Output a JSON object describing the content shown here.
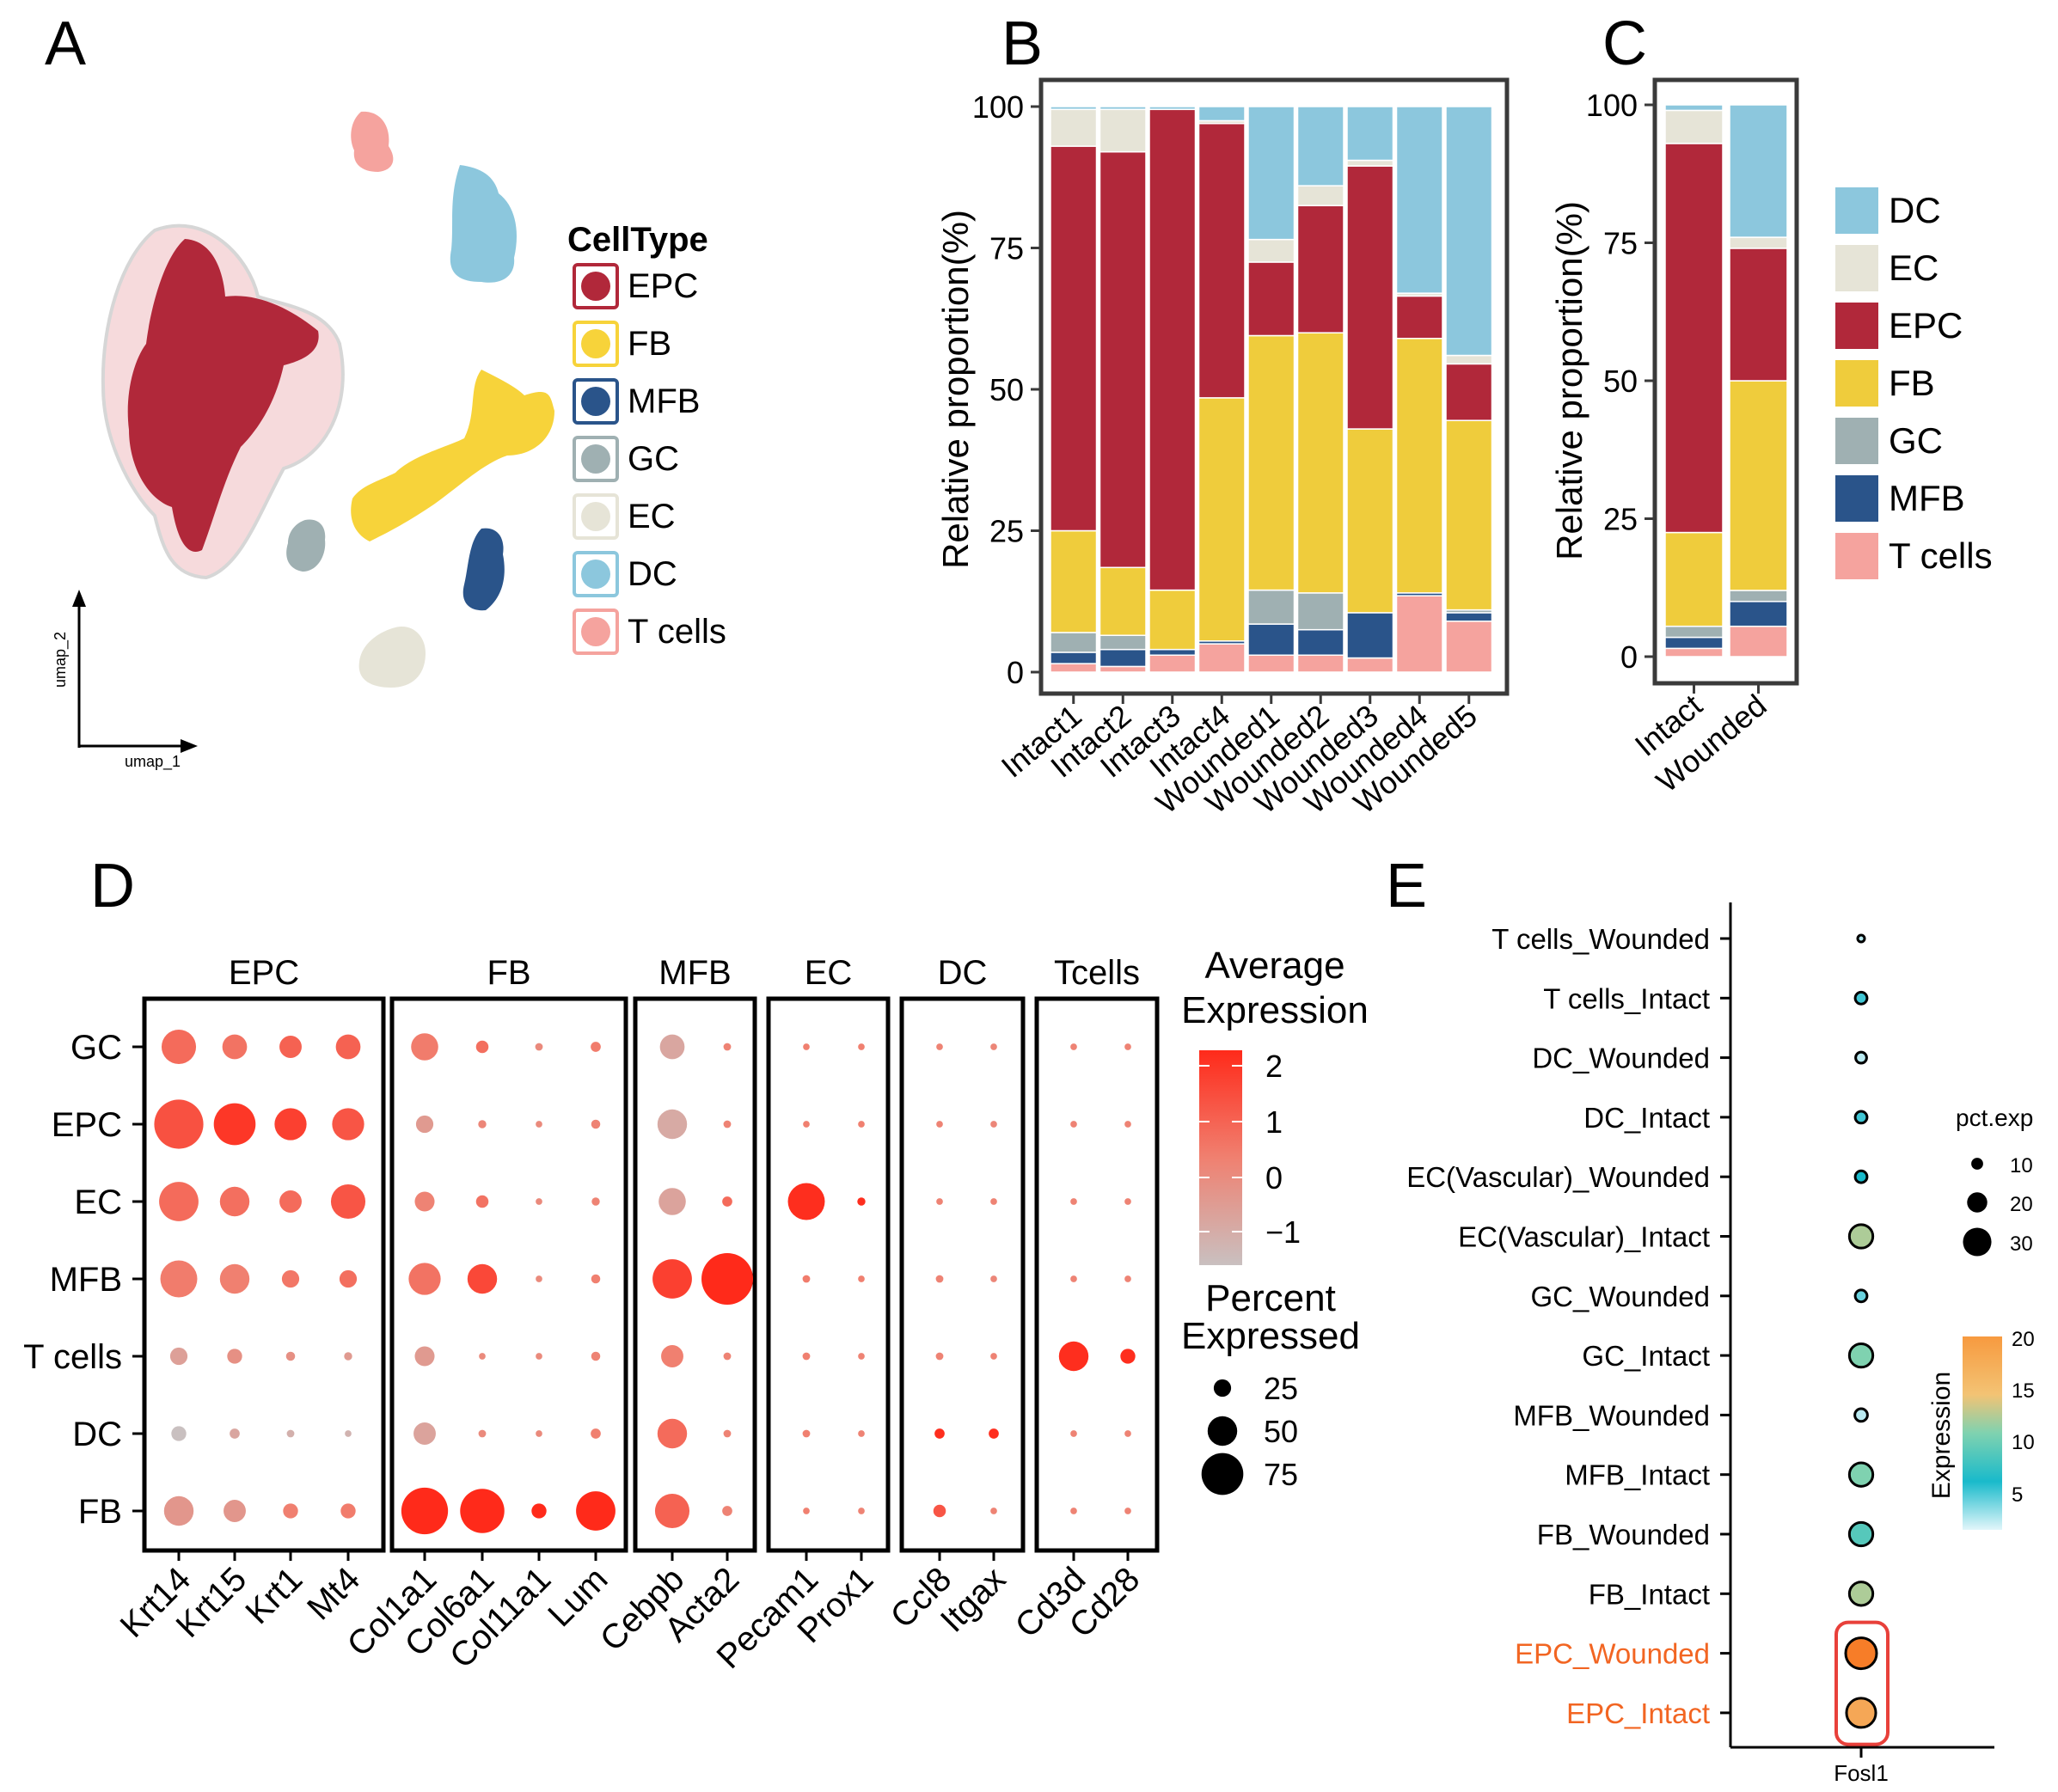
{
  "panel_labels": {
    "a": "A",
    "b": "B",
    "c": "C",
    "d": "D",
    "e": "E"
  },
  "colors": {
    "DC": "#8CC7DD",
    "EC": "#E6E4D7",
    "EPC": "#B1283A",
    "FB": "#EFCC3C",
    "GC": "#9FB0B2",
    "MFB": "#2A548A",
    "Tcells": "#F5A39E"
  },
  "umap": {
    "xlabel": "umap_1",
    "ylabel": "umap_2",
    "legend_title": "CellType",
    "legend": [
      {
        "label": "EPC",
        "color": "#B1283A"
      },
      {
        "label": "FB",
        "color": "#F7D33A"
      },
      {
        "label": "MFB",
        "color": "#2A548A"
      },
      {
        "label": "GC",
        "color": "#9FB0B2"
      },
      {
        "label": "EC",
        "color": "#E6E4D7"
      },
      {
        "label": "DC",
        "color": "#8CC7DD"
      },
      {
        "label": "T cells",
        "color": "#F5A39E"
      }
    ]
  },
  "chart_data": [
    {
      "panel": "B",
      "type": "bar",
      "stacked": true,
      "ylabel": "Relative proportion(%)",
      "ylim": [
        0,
        100
      ],
      "yticks": [
        "0",
        "25",
        "50",
        "75",
        "100"
      ],
      "categories": [
        "Intact1",
        "Intact2",
        "Intact3",
        "Intact4",
        "Wounded1",
        "Wounded2",
        "Wounded3",
        "Wounded4",
        "Wounded5"
      ],
      "series": [
        {
          "name": "T cells",
          "values": [
            1.5,
            1,
            3,
            5,
            3,
            3,
            2.5,
            13.5,
            9
          ]
        },
        {
          "name": "MFB",
          "values": [
            2,
            3,
            1,
            0.5,
            5.5,
            4.5,
            8,
            0.5,
            1.5
          ]
        },
        {
          "name": "GC",
          "values": [
            3.5,
            2.5,
            0,
            0,
            6,
            6.5,
            0,
            0,
            0.5
          ]
        },
        {
          "name": "FB",
          "values": [
            18,
            12,
            10.5,
            43,
            45,
            46,
            32.5,
            45,
            33.5
          ]
        },
        {
          "name": "EPC",
          "values": [
            68,
            73.5,
            85,
            48.5,
            13,
            22.5,
            46.5,
            7.5,
            10
          ]
        },
        {
          "name": "EC",
          "values": [
            6.5,
            7.5,
            0,
            0.5,
            4,
            3.5,
            1,
            0.5,
            1.5
          ]
        },
        {
          "name": "DC",
          "values": [
            0.5,
            0.5,
            0.5,
            2.5,
            23.5,
            14,
            9.5,
            33,
            44
          ]
        }
      ]
    },
    {
      "panel": "C",
      "type": "bar",
      "stacked": true,
      "ylabel": "Relative proportion(%)",
      "ylim": [
        0,
        100
      ],
      "yticks": [
        "0",
        "25",
        "50",
        "75",
        "100"
      ],
      "categories": [
        "Intact",
        "Wounded"
      ],
      "series": [
        {
          "name": "T cells",
          "values": [
            1.5,
            5.5
          ]
        },
        {
          "name": "MFB",
          "values": [
            2,
            4.5
          ]
        },
        {
          "name": "GC",
          "values": [
            2,
            2
          ]
        },
        {
          "name": "FB",
          "values": [
            17,
            38
          ]
        },
        {
          "name": "EPC",
          "values": [
            70.5,
            24
          ]
        },
        {
          "name": "EC",
          "values": [
            6,
            2
          ]
        },
        {
          "name": "DC",
          "values": [
            1,
            24
          ]
        }
      ],
      "legend": [
        "DC",
        "EC",
        "EPC",
        "FB",
        "GC",
        "MFB",
        "T cells"
      ]
    },
    {
      "panel": "D",
      "type": "scatter",
      "subtype": "dotplot",
      "groups": [
        {
          "name": "EPC",
          "genes": [
            "Krt14",
            "Krt15",
            "Krt1",
            "Mt4"
          ]
        },
        {
          "name": "FB",
          "genes": [
            "Col1a1",
            "Col6a1",
            "Col11a1",
            "Lum"
          ]
        },
        {
          "name": "MFB",
          "genes": [
            "Cebpb",
            "Acta2"
          ]
        },
        {
          "name": "EC",
          "genes": [
            "Pecam1",
            "Prox1"
          ]
        },
        {
          "name": "DC",
          "genes": [
            "Ccl8",
            "Itgax"
          ]
        },
        {
          "name": "Tcells",
          "genes": [
            "Cd3d",
            "Cd28"
          ]
        }
      ],
      "rows": [
        "GC",
        "EPC",
        "EC",
        "MFB",
        "T cells",
        "DC",
        "FB"
      ],
      "pct": [
        [
          60,
          40,
          35,
          40,
          45,
          15,
          5,
          10,
          40,
          5,
          3,
          3,
          3,
          3,
          3,
          3
        ],
        [
          90,
          75,
          55,
          55,
          25,
          6,
          3,
          8,
          50,
          5,
          3,
          3,
          3,
          3,
          3,
          3
        ],
        [
          70,
          50,
          35,
          60,
          30,
          15,
          3,
          6,
          45,
          10,
          65,
          6,
          3,
          3,
          3,
          3
        ],
        [
          65,
          50,
          25,
          25,
          55,
          50,
          3,
          8,
          70,
          95,
          5,
          3,
          5,
          3,
          3,
          3
        ],
        [
          25,
          20,
          8,
          6,
          30,
          3,
          3,
          8,
          35,
          5,
          5,
          3,
          5,
          3,
          50,
          20
        ],
        [
          20,
          10,
          5,
          3,
          35,
          5,
          3,
          10,
          50,
          5,
          5,
          3,
          10,
          10,
          3,
          3
        ],
        [
          50,
          35,
          20,
          20,
          85,
          80,
          20,
          70,
          60,
          10,
          3,
          3,
          15,
          3,
          3,
          3
        ]
      ],
      "avg": [
        [
          1.0,
          0.8,
          1.2,
          1.2,
          0.6,
          0.9,
          0.2,
          0.6,
          -0.7,
          0.4,
          0.5,
          0.5,
          0.4,
          0.3,
          0.4,
          0.4
        ],
        [
          1.6,
          2.2,
          2.0,
          1.5,
          -0.3,
          0.3,
          0.2,
          0.4,
          -0.8,
          0.4,
          0.5,
          0.5,
          0.4,
          0.3,
          0.4,
          0.4
        ],
        [
          1.0,
          0.9,
          1.0,
          1.5,
          0.4,
          0.8,
          0.2,
          0.4,
          -0.6,
          1.0,
          2.4,
          2.4,
          0.4,
          0.4,
          0.4,
          0.4
        ],
        [
          0.6,
          0.5,
          0.7,
          0.9,
          0.8,
          1.8,
          0.2,
          0.5,
          2.0,
          2.6,
          0.6,
          0.5,
          0.4,
          0.3,
          0.4,
          0.4
        ],
        [
          -0.5,
          0,
          0,
          -0.3,
          -0.3,
          0.2,
          0.2,
          0.4,
          0.5,
          0.4,
          0.5,
          0.4,
          0.4,
          0.4,
          2.4,
          2.4
        ],
        [
          -1.5,
          -0.7,
          -1.0,
          -1.1,
          -0.6,
          0.2,
          0.2,
          0.5,
          1.0,
          0.4,
          0.5,
          0.4,
          2.4,
          2.4,
          0.4,
          0.4
        ],
        [
          -0.2,
          -0.2,
          0.5,
          0.6,
          2.6,
          2.6,
          2.6,
          2.6,
          1.2,
          0.4,
          0.5,
          0.4,
          1.5,
          0.4,
          0.4,
          0.4
        ]
      ],
      "color_legend_title": [
        "Average",
        "Expression"
      ],
      "color_ticks": [
        "2",
        "1",
        "0",
        "−1"
      ],
      "color_range": [
        -1.5,
        2.5
      ],
      "size_legend_title": [
        "Percent",
        "Expressed"
      ],
      "size_ticks": [
        "25",
        "50",
        "75"
      ]
    },
    {
      "panel": "E",
      "type": "scatter",
      "subtype": "dotplot",
      "gene": "Fosl1",
      "rows": [
        "T cells_Wounded",
        "T cells_Intact",
        "DC_Wounded",
        "DC_Intact",
        "EC(Vascular)_Wounded",
        "EC(Vascular)_Intact",
        "GC_Wounded",
        "GC_Intact",
        "MFB_Wounded",
        "MFB_Intact",
        "FB_Wounded",
        "FB_Intact",
        "EPC_Wounded",
        "EPC_Intact"
      ],
      "highlight": [
        "EPC_Wounded",
        "EPC_Intact"
      ],
      "pct_exp": [
        4,
        10,
        9,
        10,
        10,
        24,
        10,
        24,
        11,
        24,
        24,
        24,
        33,
        31
      ],
      "expression": [
        1,
        4,
        1,
        4,
        5,
        12,
        3,
        10,
        1,
        10,
        8,
        12,
        20,
        17
      ],
      "size_legend_title": "pct.exp",
      "size_ticks": [
        "10",
        "20",
        "30"
      ],
      "color_legend_title": "Expression",
      "color_ticks": [
        "20",
        "15",
        "10",
        "5"
      ],
      "color_range": [
        0,
        20
      ]
    }
  ]
}
